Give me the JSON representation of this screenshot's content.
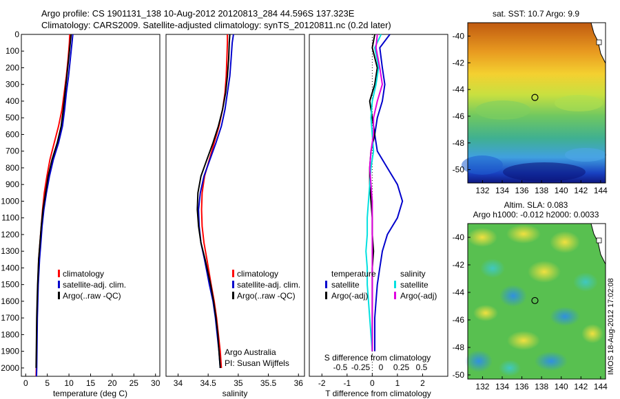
{
  "header": {
    "title_line1": "Argo profile: CS 1901131_138 10-Aug-2012 20120813_284 44.596S 137.323E",
    "title_line2": "Climatology: CARS2009. Satellite-adjusted climatology: synTS_20120811.nc (0.2d later)"
  },
  "chart_data": [
    {
      "type": "line",
      "id": "temperature-profile",
      "xlabel": "temperature (deg C)",
      "xlim": [
        -1,
        31
      ],
      "ylim": [
        2050,
        0
      ],
      "xticks": [
        0,
        5,
        10,
        15,
        20,
        25,
        30
      ],
      "yticks": [
        0,
        100,
        200,
        300,
        400,
        500,
        600,
        700,
        800,
        900,
        1000,
        1100,
        1200,
        1300,
        1400,
        1500,
        1600,
        1700,
        1800,
        1900,
        2000
      ],
      "legend": [
        "climatology",
        "satellite-adj. clim.",
        "Argo(..raw -QC)"
      ],
      "series": [
        {
          "name": "climatology",
          "color": "#ff0000",
          "x": [
            10.2,
            10.1,
            9.8,
            9.4,
            8.9,
            8.4,
            7.6,
            6.6,
            5.6,
            4.9,
            4.3,
            3.9,
            3.6,
            3.3,
            3.0,
            2.8,
            2.7,
            2.6,
            2.55,
            2.5,
            2.45,
            2.4
          ],
          "y": [
            0,
            50,
            150,
            250,
            350,
            450,
            550,
            650,
            750,
            850,
            950,
            1050,
            1150,
            1250,
            1350,
            1500,
            1600,
            1700,
            1800,
            1900,
            2000,
            2050
          ]
        },
        {
          "name": "satellite-adj. clim.",
          "color": "#0000cc",
          "x": [
            10.9,
            10.7,
            10.3,
            9.9,
            9.4,
            9.0,
            8.5,
            7.6,
            6.4,
            5.5,
            4.8,
            4.2,
            3.8,
            3.5,
            3.2,
            2.9,
            2.8,
            2.7,
            2.65,
            2.6,
            2.55,
            2.5
          ],
          "y": [
            0,
            50,
            150,
            250,
            350,
            450,
            550,
            650,
            750,
            850,
            950,
            1050,
            1150,
            1250,
            1350,
            1500,
            1600,
            1700,
            1800,
            1900,
            2000,
            2050
          ]
        },
        {
          "name": "Argo(..raw -QC)",
          "color": "#000000",
          "x": [
            10.5,
            10.3,
            9.9,
            9.5,
            9.1,
            8.7,
            8.2,
            7.3,
            6.1,
            5.2,
            4.6,
            4.0,
            3.6,
            3.3,
            3.0,
            2.75,
            2.65,
            2.55,
            2.5,
            2.45,
            2.4
          ],
          "y": [
            0,
            50,
            150,
            250,
            350,
            450,
            550,
            650,
            750,
            850,
            950,
            1050,
            1150,
            1250,
            1350,
            1500,
            1600,
            1700,
            1800,
            1900,
            2000
          ]
        }
      ]
    },
    {
      "type": "line",
      "id": "salinity-profile",
      "xlabel": "salinity",
      "xlim": [
        33.8,
        36.1
      ],
      "ylim": [
        2050,
        0
      ],
      "xticks": [
        34,
        34.5,
        35,
        35.5,
        36
      ],
      "legend": [
        "climatology",
        "satellite-adj. clim.",
        "Argo(..raw -QC)"
      ],
      "annotation": [
        "Argo Australia",
        "PI: Susan Wijffels"
      ],
      "series": [
        {
          "name": "climatology",
          "color": "#ff0000",
          "x": [
            34.82,
            34.82,
            34.81,
            34.8,
            34.78,
            34.74,
            34.68,
            34.6,
            34.52,
            34.44,
            34.4,
            34.39,
            34.4,
            34.43,
            34.48,
            34.55,
            34.6,
            34.64,
            34.67,
            34.7,
            34.72
          ],
          "y": [
            0,
            50,
            150,
            250,
            350,
            450,
            550,
            650,
            750,
            850,
            950,
            1050,
            1150,
            1250,
            1350,
            1500,
            1600,
            1700,
            1800,
            1900,
            2000
          ]
        },
        {
          "name": "satellite-adj. clim.",
          "color": "#0000cc",
          "x": [
            34.92,
            34.9,
            34.88,
            34.86,
            34.82,
            34.78,
            34.72,
            34.63,
            34.53,
            34.43,
            34.37,
            34.34,
            34.35,
            34.38,
            34.44,
            34.52,
            34.58,
            34.62,
            34.65,
            34.68,
            34.7
          ],
          "y": [
            0,
            50,
            150,
            250,
            350,
            450,
            550,
            650,
            750,
            850,
            950,
            1050,
            1150,
            1250,
            1350,
            1500,
            1600,
            1700,
            1800,
            1900,
            2000
          ]
        },
        {
          "name": "Argo(..raw -QC)",
          "color": "#000000",
          "x": [
            34.86,
            34.85,
            34.84,
            34.82,
            34.79,
            34.74,
            34.67,
            34.58,
            34.48,
            34.38,
            34.33,
            34.32,
            34.34,
            34.38,
            34.45,
            34.54,
            34.59,
            34.63,
            34.66,
            34.68,
            34.7
          ],
          "y": [
            0,
            50,
            150,
            250,
            350,
            450,
            550,
            650,
            750,
            850,
            950,
            1050,
            1150,
            1250,
            1350,
            1500,
            1600,
            1700,
            1800,
            1900,
            2000
          ]
        }
      ]
    },
    {
      "type": "line",
      "id": "difference-profile",
      "xlabel": "T difference from climatology",
      "top_label": "S difference from climatology",
      "xlim": [
        -2.5,
        3
      ],
      "ylim": [
        2050,
        0
      ],
      "xticks": [
        -2,
        -1,
        0,
        1,
        2
      ],
      "top_ticks": [
        "-0.5",
        "-0.25",
        "0",
        "0.25",
        "0.5"
      ],
      "legend_temperature": [
        "temperature",
        "satellite",
        "Argo(-adj)"
      ],
      "legend_salinity": [
        "salinity",
        "satellite",
        "Argo(-adj)"
      ],
      "series": [
        {
          "name": "temperature satellite",
          "color": "#0000cc",
          "x": [
            0.7,
            0.3,
            0.4,
            0.5,
            0.4,
            0.2,
            0.1,
            0.2,
            0.6,
            1.0,
            1.2,
            1.0,
            0.6,
            0.4,
            0.3,
            0.2,
            0.15,
            0.1,
            0.1,
            0.1
          ],
          "y": [
            0,
            80,
            200,
            300,
            400,
            500,
            600,
            700,
            800,
            900,
            1000,
            1100,
            1200,
            1300,
            1400,
            1500,
            1600,
            1700,
            1800,
            1900
          ]
        },
        {
          "name": "temperature Argo(-adj)",
          "color": "#000000",
          "x": [
            0.1,
            0.0,
            0.2,
            0.1,
            -0.1,
            0.0,
            0.1,
            -0.05,
            -0.1,
            -0.1,
            -0.05,
            0.0,
            0.0,
            0.05,
            0.0,
            0.0,
            0.0,
            0.0,
            0.0,
            0.0
          ],
          "y": [
            0,
            80,
            200,
            300,
            400,
            500,
            600,
            700,
            800,
            900,
            1000,
            1100,
            1200,
            1300,
            1400,
            1500,
            1600,
            1700,
            1800,
            1900
          ]
        },
        {
          "name": "salinity satellite",
          "color": "#00e0e0",
          "x": [
            0.35,
            0.1,
            0.25,
            0.15,
            0.0,
            -0.05,
            0.0,
            0.05,
            -0.05,
            -0.1,
            -0.15,
            -0.2,
            -0.2,
            -0.25,
            -0.2,
            -0.2,
            -0.15,
            -0.1,
            -0.05,
            0.0
          ],
          "y": [
            0,
            80,
            200,
            300,
            400,
            500,
            600,
            700,
            800,
            900,
            1000,
            1100,
            1200,
            1300,
            1400,
            1500,
            1600,
            1700,
            1800,
            1900
          ]
        },
        {
          "name": "salinity Argo(-adj)",
          "color": "#e000e0",
          "x": [
            0.2,
            0.15,
            0.3,
            0.4,
            0.2,
            0.05,
            0.05,
            -0.05,
            -0.1,
            -0.05,
            0.0,
            0.0,
            0.0,
            0.0,
            0.0,
            0.0,
            0.0,
            0.0,
            0.0,
            0.0
          ],
          "y": [
            0,
            80,
            200,
            300,
            400,
            500,
            600,
            700,
            800,
            900,
            1000,
            1100,
            1200,
            1300,
            1400,
            1500,
            1600,
            1700,
            1800,
            1900
          ]
        }
      ]
    },
    {
      "type": "heatmap",
      "id": "sst-map",
      "title": "sat. SST: 10.7  Argo: 9.9",
      "xticks": [
        132,
        134,
        136,
        138,
        140,
        142,
        144
      ],
      "yticks": [
        -40,
        -42,
        -44,
        -46,
        -48,
        -50
      ],
      "marker": {
        "lon": 137.323,
        "lat": -44.596
      }
    },
    {
      "type": "heatmap",
      "id": "sla-map",
      "title_line1": "Altim. SLA: 0.083",
      "title_line2": "Argo h1000: -0.012 h2000: 0.0033",
      "xticks": [
        132,
        134,
        136,
        138,
        140,
        142,
        144
      ],
      "yticks": [
        -40,
        -42,
        -44,
        -46,
        -48,
        -50
      ],
      "marker": {
        "lon": 137.323,
        "lat": -44.596
      }
    }
  ],
  "footer_stamp": "IMOS 18-Aug-2012 17:02:08"
}
